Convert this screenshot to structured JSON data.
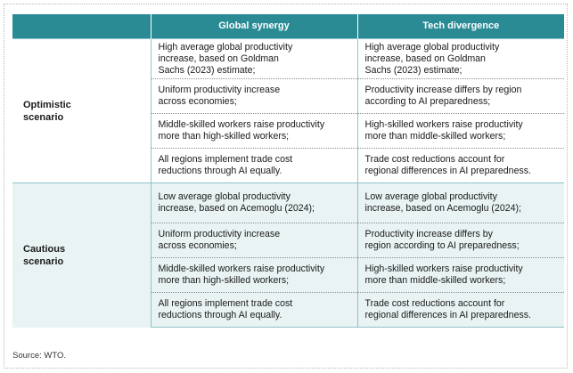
{
  "table": {
    "headers": [
      "",
      "Global synergy",
      "Tech divergence"
    ],
    "groups": [
      {
        "label": "Optimistic\nscenario",
        "rows": [
          [
            "High average global productivity\nincrease, based on Goldman\nSachs (2023) estimate;",
            "High average global productivity\nincrease, based on Goldman\nSachs (2023) estimate;"
          ],
          [
            "Uniform productivity increase\nacross economies;",
            "Productivity increase differs by region\naccording to AI preparedness;"
          ],
          [
            "Middle-skilled workers raise productivity\nmore than high-skilled workers;",
            "High-skilled workers raise productivity\nmore than middle-skilled workers;"
          ],
          [
            "All regions implement trade cost\nreductions through AI equally.",
            "Trade cost reductions account for\nregional differences in AI preparedness."
          ]
        ]
      },
      {
        "label": "Cautious\nscenario",
        "rows": [
          [
            "Low average global productivity\nincrease, based on Acemoglu (2024);",
            "Low average global productivity\nincrease, based on Acemoglu (2024);"
          ],
          [
            "Uniform productivity increase\nacross economies;",
            "Productivity increase differs by\nregion according to AI preparedness;"
          ],
          [
            "Middle-skilled workers raise productivity\nmore than high-skilled workers;",
            "High-skilled workers raise productivity\nmore than middle-skilled workers;"
          ],
          [
            "All regions implement trade cost\nreductions through AI equally.",
            "Trade cost reductions account for\nregional differences in AI preparedness."
          ]
        ]
      }
    ]
  },
  "source": "Source: WTO."
}
